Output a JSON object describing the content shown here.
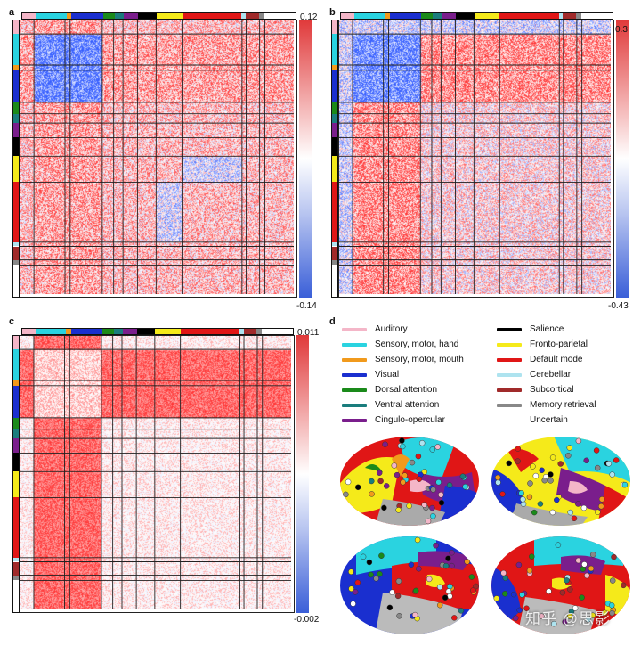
{
  "panels": [
    {
      "letter": "a",
      "cb_max": "0.12",
      "cb_min": "-0.14",
      "pattern": "a"
    },
    {
      "letter": "b",
      "cb_max": "0.3",
      "cb_min": "-0.43",
      "pattern": "b"
    },
    {
      "letter": "c",
      "cb_max": "0.011",
      "cb_min": "-0.002",
      "pattern": "c"
    }
  ],
  "legend_letter": "d",
  "networks": [
    {
      "name": "Auditory",
      "color": "#f4b6c8",
      "size": 13
    },
    {
      "name": "Sensory, motor, hand",
      "color": "#2ad3e0",
      "size": 30
    },
    {
      "name": "Sensory, motor, mouth",
      "color": "#f19a1c",
      "size": 5
    },
    {
      "name": "Visual",
      "color": "#1a2fcf",
      "size": 31
    },
    {
      "name": "Dorsal attention",
      "color": "#1a8a1a",
      "size": 11
    },
    {
      "name": "Ventral attention",
      "color": "#1a7d7d",
      "size": 9
    },
    {
      "name": "Cingulo-opercular",
      "color": "#7a1e8c",
      "size": 14
    },
    {
      "name": "Salience",
      "color": "#000000",
      "size": 18
    },
    {
      "name": "Fronto-parietal",
      "color": "#f5ea1a",
      "size": 25
    },
    {
      "name": "Default mode",
      "color": "#e01616",
      "size": 58
    },
    {
      "name": "Cerebellar",
      "color": "#aee3ef",
      "size": 4
    },
    {
      "name": "Subcortical",
      "color": "#a02a2a",
      "size": 13
    },
    {
      "name": "Memory retrieval",
      "color": "#888888",
      "size": 5
    },
    {
      "name": "Uncertain",
      "color": "#ffffff",
      "size": 28
    }
  ],
  "colors": {
    "red": "#e0393a",
    "blue": "#3a5fd8",
    "white": "#ffffff"
  },
  "watermark": "知乎 @思影"
}
